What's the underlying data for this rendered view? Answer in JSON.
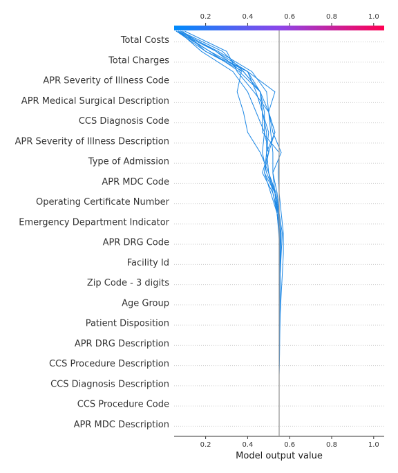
{
  "chart_data": {
    "type": "line",
    "subtype": "shap-decision-plot",
    "xlabel": "Model output value",
    "xlim": [
      0.05,
      1.05
    ],
    "x_ticks": [
      0.2,
      0.4,
      0.6,
      0.8,
      1.0
    ],
    "x_tick_labels": [
      "0.2",
      "0.4",
      "0.6",
      "0.8",
      "1.0"
    ],
    "base_value": 0.55,
    "colorbar": {
      "range": [
        0.05,
        1.05
      ],
      "start_color": "#008bfb",
      "mid_color": "#8b46ea",
      "end_color": "#ff0052"
    },
    "line_color": "#1e88e5",
    "base_line_color": "#999999",
    "grid": "dotted-horizontal",
    "features": [
      "Total Costs",
      "Total Charges",
      "APR Severity of Illness Code",
      "APR Medical Surgical Description",
      "CCS Diagnosis Code",
      "APR Severity of Illness Description",
      "Type of Admission",
      "APR MDC Code",
      "Operating Certificate Number",
      "Emergency Department Indicator",
      "APR DRG Code",
      "Facility Id",
      "Zip Code - 3 digits",
      "Age Group",
      "Patient Disposition",
      "APR DRG Description",
      "CCS Procedure Description",
      "CCS Diagnosis Description",
      "CCS Procedure Code",
      "APR MDC Description"
    ],
    "series": [
      {
        "values": [
          0.55,
          0.55,
          0.55,
          0.55,
          0.552,
          0.553,
          0.555,
          0.56,
          0.565,
          0.57,
          0.57,
          0.56,
          0.55,
          0.545,
          0.55,
          0.47,
          0.47,
          0.46,
          0.38,
          0.2,
          0.06
        ]
      },
      {
        "values": [
          0.55,
          0.55,
          0.55,
          0.55,
          0.551,
          0.552,
          0.553,
          0.555,
          0.555,
          0.558,
          0.555,
          0.54,
          0.53,
          0.52,
          0.56,
          0.52,
          0.5,
          0.53,
          0.4,
          0.22,
          0.07
        ]
      },
      {
        "values": [
          0.55,
          0.55,
          0.55,
          0.55,
          0.55,
          0.55,
          0.55,
          0.55,
          0.552,
          0.555,
          0.548,
          0.54,
          0.51,
          0.48,
          0.5,
          0.53,
          0.5,
          0.43,
          0.35,
          0.3,
          0.1
        ]
      },
      {
        "values": [
          0.55,
          0.55,
          0.55,
          0.55,
          0.55,
          0.55,
          0.55,
          0.55,
          0.55,
          0.552,
          0.55,
          0.54,
          0.53,
          0.5,
          0.46,
          0.4,
          0.38,
          0.35,
          0.37,
          0.25,
          0.08
        ]
      },
      {
        "values": [
          0.55,
          0.55,
          0.55,
          0.55,
          0.55,
          0.55,
          0.55,
          0.551,
          0.553,
          0.556,
          0.56,
          0.545,
          0.52,
          0.47,
          0.5,
          0.48,
          0.44,
          0.4,
          0.33,
          0.18,
          0.07
        ]
      },
      {
        "values": [
          0.55,
          0.55,
          0.55,
          0.55,
          0.55,
          0.55,
          0.55,
          0.55,
          0.55,
          0.553,
          0.55,
          0.54,
          0.52,
          0.5,
          0.49,
          0.5,
          0.47,
          0.46,
          0.4,
          0.25,
          0.06
        ]
      },
      {
        "values": [
          0.55,
          0.55,
          0.55,
          0.55,
          0.55,
          0.55,
          0.55,
          0.55,
          0.551,
          0.553,
          0.556,
          0.55,
          0.535,
          0.5,
          0.49,
          0.53,
          0.5,
          0.46,
          0.38,
          0.28,
          0.08
        ]
      },
      {
        "values": [
          0.55,
          0.55,
          0.55,
          0.55,
          0.55,
          0.55,
          0.55,
          0.55,
          0.55,
          0.551,
          0.552,
          0.548,
          0.53,
          0.49,
          0.47,
          0.48,
          0.48,
          0.46,
          0.36,
          0.22,
          0.06
        ]
      },
      {
        "values": [
          0.55,
          0.55,
          0.55,
          0.55,
          0.55,
          0.55,
          0.55,
          0.552,
          0.555,
          0.56,
          0.565,
          0.55,
          0.54,
          0.52,
          0.52,
          0.51,
          0.5,
          0.49,
          0.42,
          0.26,
          0.07
        ]
      },
      {
        "values": [
          0.55,
          0.55,
          0.55,
          0.55,
          0.55,
          0.55,
          0.55,
          0.55,
          0.55,
          0.552,
          0.55,
          0.545,
          0.53,
          0.48,
          0.49,
          0.49,
          0.47,
          0.44,
          0.4,
          0.2,
          0.09
        ]
      }
    ]
  }
}
